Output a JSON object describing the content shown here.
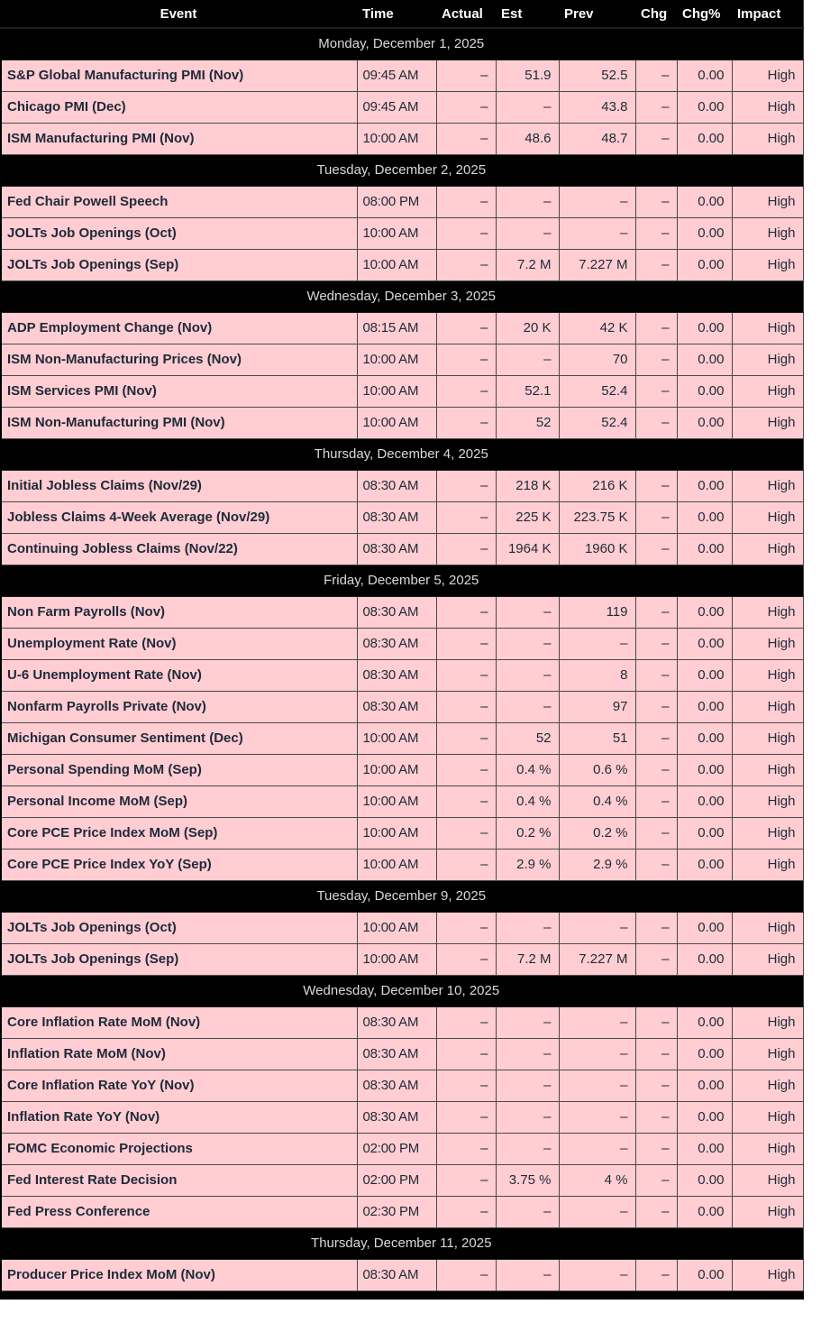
{
  "colors": {
    "header_bg": "#000000",
    "header_text": "#FFFFFF",
    "date_text": "#D9D9D9",
    "row_bg": "#FFCDD2",
    "cell_text": "#1E2A3A",
    "grid_line": "#4A4A4A"
  },
  "chart_data": {
    "type": "table",
    "columns": [
      "Event",
      "Time",
      "Actual",
      "Est",
      "Prev",
      "Chg",
      "Chg%",
      "Impact"
    ],
    "groups": [
      {
        "date": "Monday, December 1, 2025",
        "rows": [
          {
            "event": "S&P Global Manufacturing PMI (Nov)",
            "time": "09:45 AM",
            "actual": "–",
            "est": "51.9",
            "prev": "52.5",
            "chg": "–",
            "chg_pct": "0.00",
            "impact": "High"
          },
          {
            "event": "Chicago PMI (Dec)",
            "time": "09:45 AM",
            "actual": "–",
            "est": "–",
            "prev": "43.8",
            "chg": "–",
            "chg_pct": "0.00",
            "impact": "High"
          },
          {
            "event": "ISM Manufacturing PMI (Nov)",
            "time": "10:00 AM",
            "actual": "–",
            "est": "48.6",
            "prev": "48.7",
            "chg": "–",
            "chg_pct": "0.00",
            "impact": "High"
          }
        ]
      },
      {
        "date": "Tuesday, December 2, 2025",
        "rows": [
          {
            "event": "Fed Chair Powell Speech",
            "time": "08:00 PM",
            "actual": "–",
            "est": "–",
            "prev": "–",
            "chg": "–",
            "chg_pct": "0.00",
            "impact": "High"
          },
          {
            "event": "JOLTs Job Openings (Oct)",
            "time": "10:00 AM",
            "actual": "–",
            "est": "–",
            "prev": "–",
            "chg": "–",
            "chg_pct": "0.00",
            "impact": "High"
          },
          {
            "event": "JOLTs Job Openings (Sep)",
            "time": "10:00 AM",
            "actual": "–",
            "est": "7.2 M",
            "prev": "7.227 M",
            "chg": "–",
            "chg_pct": "0.00",
            "impact": "High"
          }
        ]
      },
      {
        "date": "Wednesday, December 3, 2025",
        "rows": [
          {
            "event": "ADP Employment Change (Nov)",
            "time": "08:15 AM",
            "actual": "–",
            "est": "20 K",
            "prev": "42 K",
            "chg": "–",
            "chg_pct": "0.00",
            "impact": "High"
          },
          {
            "event": "ISM Non-Manufacturing Prices (Nov)",
            "time": "10:00 AM",
            "actual": "–",
            "est": "–",
            "prev": "70",
            "chg": "–",
            "chg_pct": "0.00",
            "impact": "High"
          },
          {
            "event": "ISM Services PMI (Nov)",
            "time": "10:00 AM",
            "actual": "–",
            "est": "52.1",
            "prev": "52.4",
            "chg": "–",
            "chg_pct": "0.00",
            "impact": "High"
          },
          {
            "event": "ISM Non-Manufacturing PMI (Nov)",
            "time": "10:00 AM",
            "actual": "–",
            "est": "52",
            "prev": "52.4",
            "chg": "–",
            "chg_pct": "0.00",
            "impact": "High"
          }
        ]
      },
      {
        "date": "Thursday, December 4, 2025",
        "rows": [
          {
            "event": "Initial Jobless Claims (Nov/29)",
            "time": "08:30 AM",
            "actual": "–",
            "est": "218 K",
            "prev": "216 K",
            "chg": "–",
            "chg_pct": "0.00",
            "impact": "High"
          },
          {
            "event": "Jobless Claims 4-Week Average (Nov/29)",
            "time": "08:30 AM",
            "actual": "–",
            "est": "225 K",
            "prev": "223.75 K",
            "chg": "–",
            "chg_pct": "0.00",
            "impact": "High"
          },
          {
            "event": "Continuing Jobless Claims (Nov/22)",
            "time": "08:30 AM",
            "actual": "–",
            "est": "1964 K",
            "prev": "1960 K",
            "chg": "–",
            "chg_pct": "0.00",
            "impact": "High"
          }
        ]
      },
      {
        "date": "Friday, December 5, 2025",
        "rows": [
          {
            "event": "Non Farm Payrolls (Nov)",
            "time": "08:30 AM",
            "actual": "–",
            "est": "–",
            "prev": "119",
            "chg": "–",
            "chg_pct": "0.00",
            "impact": "High"
          },
          {
            "event": "Unemployment Rate (Nov)",
            "time": "08:30 AM",
            "actual": "–",
            "est": "–",
            "prev": "–",
            "chg": "–",
            "chg_pct": "0.00",
            "impact": "High"
          },
          {
            "event": "U-6 Unemployment Rate (Nov)",
            "time": "08:30 AM",
            "actual": "–",
            "est": "–",
            "prev": "8",
            "chg": "–",
            "chg_pct": "0.00",
            "impact": "High"
          },
          {
            "event": "Nonfarm Payrolls Private (Nov)",
            "time": "08:30 AM",
            "actual": "–",
            "est": "–",
            "prev": "97",
            "chg": "–",
            "chg_pct": "0.00",
            "impact": "High"
          },
          {
            "event": "Michigan Consumer Sentiment (Dec)",
            "time": "10:00 AM",
            "actual": "–",
            "est": "52",
            "prev": "51",
            "chg": "–",
            "chg_pct": "0.00",
            "impact": "High"
          },
          {
            "event": "Personal Spending MoM (Sep)",
            "time": "10:00 AM",
            "actual": "–",
            "est": "0.4 %",
            "prev": "0.6 %",
            "chg": "–",
            "chg_pct": "0.00",
            "impact": "High"
          },
          {
            "event": "Personal Income MoM (Sep)",
            "time": "10:00 AM",
            "actual": "–",
            "est": "0.4 %",
            "prev": "0.4 %",
            "chg": "–",
            "chg_pct": "0.00",
            "impact": "High"
          },
          {
            "event": "Core PCE Price Index MoM (Sep)",
            "time": "10:00 AM",
            "actual": "–",
            "est": "0.2 %",
            "prev": "0.2 %",
            "chg": "–",
            "chg_pct": "0.00",
            "impact": "High"
          },
          {
            "event": "Core PCE Price Index YoY (Sep)",
            "time": "10:00 AM",
            "actual": "–",
            "est": "2.9 %",
            "prev": "2.9 %",
            "chg": "–",
            "chg_pct": "0.00",
            "impact": "High"
          }
        ]
      },
      {
        "date": "Tuesday, December 9, 2025",
        "rows": [
          {
            "event": "JOLTs Job Openings (Oct)",
            "time": "10:00 AM",
            "actual": "–",
            "est": "–",
            "prev": "–",
            "chg": "–",
            "chg_pct": "0.00",
            "impact": "High"
          },
          {
            "event": "JOLTs Job Openings (Sep)",
            "time": "10:00 AM",
            "actual": "–",
            "est": "7.2 M",
            "prev": "7.227 M",
            "chg": "–",
            "chg_pct": "0.00",
            "impact": "High"
          }
        ]
      },
      {
        "date": "Wednesday, December 10, 2025",
        "rows": [
          {
            "event": "Core Inflation Rate MoM (Nov)",
            "time": "08:30 AM",
            "actual": "–",
            "est": "–",
            "prev": "–",
            "chg": "–",
            "chg_pct": "0.00",
            "impact": "High"
          },
          {
            "event": "Inflation Rate MoM (Nov)",
            "time": "08:30 AM",
            "actual": "–",
            "est": "–",
            "prev": "–",
            "chg": "–",
            "chg_pct": "0.00",
            "impact": "High"
          },
          {
            "event": "Core Inflation Rate YoY (Nov)",
            "time": "08:30 AM",
            "actual": "–",
            "est": "–",
            "prev": "–",
            "chg": "–",
            "chg_pct": "0.00",
            "impact": "High"
          },
          {
            "event": "Inflation Rate YoY (Nov)",
            "time": "08:30 AM",
            "actual": "–",
            "est": "–",
            "prev": "–",
            "chg": "–",
            "chg_pct": "0.00",
            "impact": "High"
          },
          {
            "event": "FOMC Economic Projections",
            "time": "02:00 PM",
            "actual": "–",
            "est": "–",
            "prev": "–",
            "chg": "–",
            "chg_pct": "0.00",
            "impact": "High"
          },
          {
            "event": "Fed Interest Rate Decision",
            "time": "02:00 PM",
            "actual": "–",
            "est": "3.75 %",
            "prev": "4 %",
            "chg": "–",
            "chg_pct": "0.00",
            "impact": "High"
          },
          {
            "event": "Fed Press Conference",
            "time": "02:30 PM",
            "actual": "–",
            "est": "–",
            "prev": "–",
            "chg": "–",
            "chg_pct": "0.00",
            "impact": "High"
          }
        ]
      },
      {
        "date": "Thursday, December 11, 2025",
        "rows": [
          {
            "event": "Producer Price Index MoM (Nov)",
            "time": "08:30 AM",
            "actual": "–",
            "est": "–",
            "prev": "–",
            "chg": "–",
            "chg_pct": "0.00",
            "impact": "High"
          }
        ]
      }
    ]
  }
}
